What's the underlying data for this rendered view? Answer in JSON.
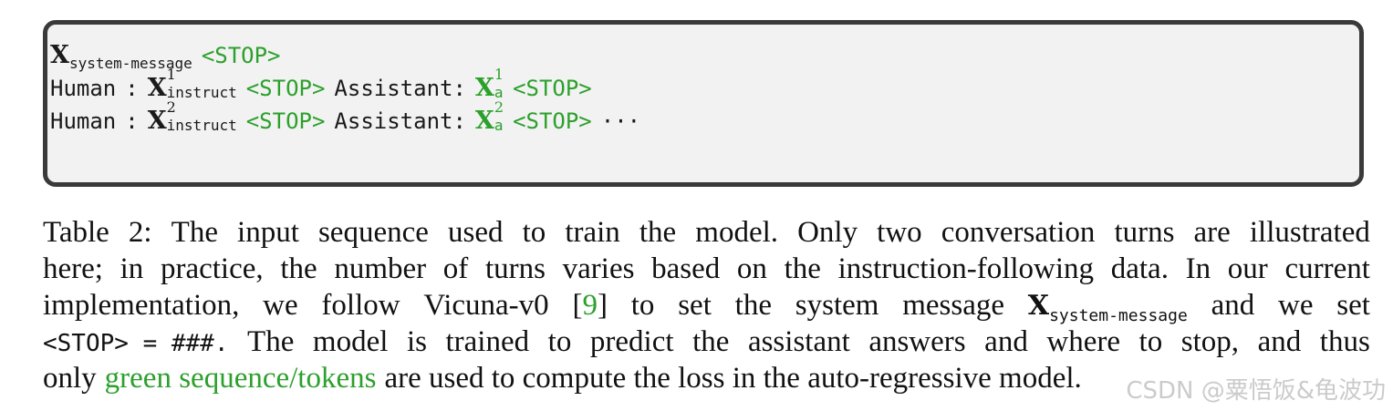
{
  "sequence": {
    "x_symbol": "X",
    "system_sub": "system-message",
    "stop": "<STOP>",
    "human": "Human",
    "colon": ":",
    "assistant": "Assistant:",
    "instruct_sub": "instruct",
    "answer_sub": "a",
    "turn1_sup": "1",
    "turn2_sup": "2",
    "ellipsis": "···"
  },
  "caption": {
    "line1": [
      "Table",
      "2:",
      "The",
      "input",
      "sequence",
      "used",
      "to",
      "train",
      "the",
      "model.",
      "Only",
      "two",
      "conversation",
      "turns",
      "are",
      "illustrated"
    ],
    "line2": [
      "here;",
      "in",
      "practice,",
      "the",
      "number",
      "of",
      "turns",
      "varies",
      "based",
      "on",
      "the",
      "instruction-following",
      "data.",
      "In",
      "our",
      "current"
    ],
    "line3_words": [
      "implementation,",
      "we",
      "follow",
      "Vicuna-v0"
    ],
    "cite_open": "[",
    "cite_num": "9",
    "cite_close": "]",
    "line3_after": [
      "to",
      "set",
      "the",
      "system",
      "message"
    ],
    "line3_x": "X",
    "line3_sub": "system-message",
    "line3_end": [
      "and",
      "we",
      "set"
    ],
    "line4_code": "<STOP> = ###.",
    "line4": [
      "The",
      "model",
      "is",
      "trained",
      "to",
      "predict",
      "the",
      "assistant",
      "answers",
      "and",
      "where",
      "to",
      "stop,",
      "and",
      "thus"
    ],
    "line5_start": "only",
    "line5_green": "green sequence/tokens",
    "line5_rest": "are used to compute the loss in the auto-regressive model."
  },
  "watermark": "CSDN @粟悟饭&龟波功",
  "colors": {
    "green": "#2ca02c",
    "box_bg": "#f2f2f2",
    "box_border": "#3a3a3a"
  }
}
